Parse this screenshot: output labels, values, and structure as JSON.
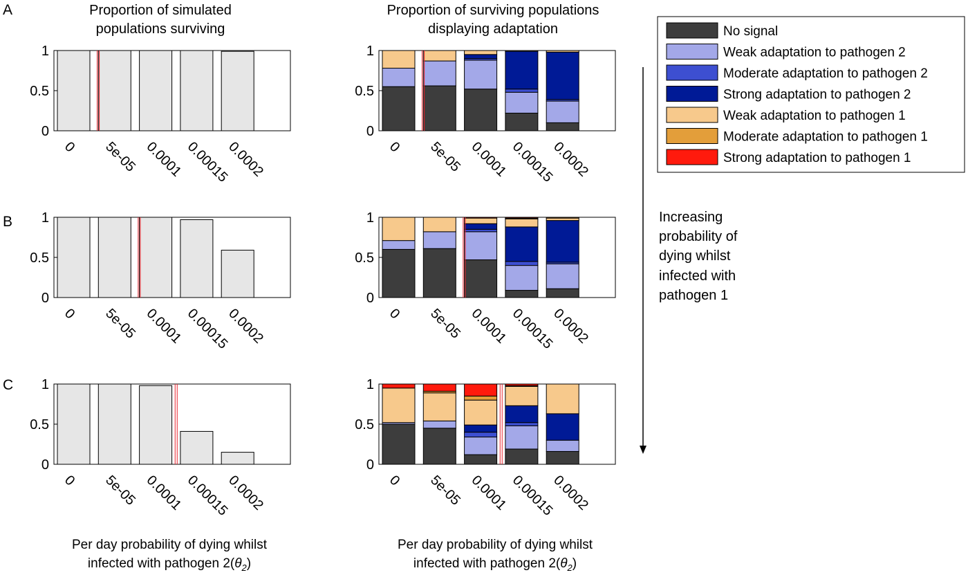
{
  "colors": {
    "no_signal": "#3d3d3d",
    "weak_p2": "#a3a8e8",
    "moderate_p2": "#3d4fd1",
    "strong_p2": "#001a96",
    "weak_p1": "#f7c98c",
    "moderate_p1": "#e39e3a",
    "strong_p1": "#ff1a0d",
    "survival_bar": "#e6e6e6",
    "threshold_line": "#e8202a"
  },
  "titles": {
    "left": [
      "Proportion of simulated",
      "populations surviving"
    ],
    "right": [
      "Proportion of surviving populations",
      "displaying adaptation"
    ]
  },
  "xlabels": {
    "left": [
      "Per day probability of dying whilst",
      "infected with pathogen 2(",
      "θ",
      "2",
      ")"
    ],
    "right": [
      "Per day probability of dying whilst",
      "infected with pathogen 2(",
      "θ",
      "2",
      ")"
    ]
  },
  "annotation": {
    "lines": [
      "Increasing",
      "probability of",
      "dying whilst",
      "infected with",
      "pathogen 1"
    ]
  },
  "legend": [
    {
      "key": "no_signal",
      "label": "No signal"
    },
    {
      "key": "weak_p2",
      "label": "Weak adaptation to pathogen 2"
    },
    {
      "key": "moderate_p2",
      "label": "Moderate adaptation to pathogen 2"
    },
    {
      "key": "strong_p2",
      "label": "Strong adaptation to pathogen 2"
    },
    {
      "key": "weak_p1",
      "label": "Weak adaptation to pathogen 1"
    },
    {
      "key": "moderate_p1",
      "label": "Moderate adaptation to pathogen 1"
    },
    {
      "key": "strong_p1",
      "label": "Strong adaptation to pathogen 1"
    }
  ],
  "chart_data": [
    {
      "panel": "A",
      "type": "bar",
      "title": "Proportion of simulated populations surviving",
      "categories": [
        "0",
        "5e-05",
        "0.0001",
        "0.00015",
        "0.0002"
      ],
      "yticks": [
        "0",
        "0.5",
        "1"
      ],
      "ylim": [
        0,
        1
      ],
      "values": [
        1.0,
        1.0,
        1.0,
        1.0,
        0.99
      ],
      "threshold_x": 3e-05
    },
    {
      "panel": "A",
      "type": "stacked_bar",
      "title": "Proportion of surviving populations displaying adaptation",
      "categories": [
        "0",
        "5e-05",
        "0.0001",
        "0.00015",
        "0.0002"
      ],
      "yticks": [
        "0",
        "0.5",
        "1"
      ],
      "ylim": [
        0,
        1
      ],
      "series": [
        {
          "name": "No signal",
          "key": "no_signal",
          "values": [
            0.55,
            0.56,
            0.52,
            0.22,
            0.1
          ]
        },
        {
          "name": "Weak adaptation to pathogen 2",
          "key": "weak_p2",
          "values": [
            0.23,
            0.31,
            0.36,
            0.26,
            0.27
          ]
        },
        {
          "name": "Moderate adaptation to pathogen 2",
          "key": "moderate_p2",
          "values": [
            0.0,
            0.0,
            0.02,
            0.04,
            0.02
          ]
        },
        {
          "name": "Strong adaptation to pathogen 2",
          "key": "strong_p2",
          "values": [
            0.0,
            0.0,
            0.05,
            0.47,
            0.59
          ]
        },
        {
          "name": "Weak adaptation to pathogen 1",
          "key": "weak_p1",
          "values": [
            0.22,
            0.13,
            0.05,
            0.01,
            0.02
          ]
        },
        {
          "name": "Moderate adaptation to pathogen 1",
          "key": "moderate_p1",
          "values": [
            0.0,
            0.0,
            0.0,
            0.0,
            0.0
          ]
        },
        {
          "name": "Strong adaptation to pathogen 1",
          "key": "strong_p1",
          "values": [
            0.0,
            0.0,
            0.0,
            0.0,
            0.0
          ]
        }
      ],
      "threshold_x": 3e-05
    },
    {
      "panel": "B",
      "type": "bar",
      "categories": [
        "0",
        "5e-05",
        "0.0001",
        "0.00015",
        "0.0002"
      ],
      "yticks": [
        "0",
        "0.5",
        "1"
      ],
      "ylim": [
        0,
        1
      ],
      "values": [
        1.0,
        1.0,
        1.0,
        0.97,
        0.59
      ],
      "threshold_x": 8e-05
    },
    {
      "panel": "B",
      "type": "stacked_bar",
      "categories": [
        "0",
        "5e-05",
        "0.0001",
        "0.00015",
        "0.0002"
      ],
      "yticks": [
        "0",
        "0.5",
        "1"
      ],
      "ylim": [
        0,
        1
      ],
      "series": [
        {
          "name": "No signal",
          "key": "no_signal",
          "values": [
            0.6,
            0.61,
            0.47,
            0.09,
            0.11
          ]
        },
        {
          "name": "Weak adaptation to pathogen 2",
          "key": "weak_p2",
          "values": [
            0.11,
            0.21,
            0.35,
            0.31,
            0.31
          ]
        },
        {
          "name": "Moderate adaptation to pathogen 2",
          "key": "moderate_p2",
          "values": [
            0.0,
            0.0,
            0.03,
            0.05,
            0.02
          ]
        },
        {
          "name": "Strong adaptation to pathogen 2",
          "key": "strong_p2",
          "values": [
            0.0,
            0.0,
            0.07,
            0.43,
            0.52
          ]
        },
        {
          "name": "Weak adaptation to pathogen 1",
          "key": "weak_p1",
          "values": [
            0.29,
            0.18,
            0.07,
            0.1,
            0.03
          ]
        },
        {
          "name": "Moderate adaptation to pathogen 1",
          "key": "moderate_p1",
          "values": [
            0.0,
            0.0,
            0.0,
            0.01,
            0.01
          ]
        },
        {
          "name": "Strong adaptation to pathogen 1",
          "key": "strong_p1",
          "values": [
            0.0,
            0.0,
            0.01,
            0.01,
            0.0
          ]
        }
      ],
      "threshold_x": 8e-05
    },
    {
      "panel": "C",
      "type": "bar",
      "categories": [
        "0",
        "5e-05",
        "0.0001",
        "0.00015",
        "0.0002"
      ],
      "yticks": [
        "0",
        "0.5",
        "1"
      ],
      "ylim": [
        0,
        1
      ],
      "values": [
        1.0,
        1.0,
        0.98,
        0.41,
        0.15
      ],
      "threshold_x": 0.000125
    },
    {
      "panel": "C",
      "type": "stacked_bar",
      "categories": [
        "0",
        "5e-05",
        "0.0001",
        "0.00015",
        "0.0002"
      ],
      "yticks": [
        "0",
        "0.5",
        "1"
      ],
      "ylim": [
        0,
        1
      ],
      "series": [
        {
          "name": "No signal",
          "key": "no_signal",
          "values": [
            0.5,
            0.45,
            0.12,
            0.19,
            0.16
          ]
        },
        {
          "name": "Weak adaptation to pathogen 2",
          "key": "weak_p2",
          "values": [
            0.02,
            0.09,
            0.22,
            0.29,
            0.14
          ]
        },
        {
          "name": "Moderate adaptation to pathogen 2",
          "key": "moderate_p2",
          "values": [
            0.0,
            0.0,
            0.06,
            0.04,
            0.0
          ]
        },
        {
          "name": "Strong adaptation to pathogen 2",
          "key": "strong_p2",
          "values": [
            0.0,
            0.0,
            0.09,
            0.21,
            0.33
          ]
        },
        {
          "name": "Weak adaptation to pathogen 1",
          "key": "weak_p1",
          "values": [
            0.43,
            0.35,
            0.31,
            0.24,
            0.37
          ]
        },
        {
          "name": "Moderate adaptation to pathogen 1",
          "key": "moderate_p1",
          "values": [
            0.0,
            0.02,
            0.05,
            0.01,
            0.0
          ]
        },
        {
          "name": "Strong adaptation to pathogen 1",
          "key": "strong_p1",
          "values": [
            0.05,
            0.09,
            0.15,
            0.02,
            0.0
          ]
        }
      ],
      "threshold_x": 0.000125
    }
  ]
}
